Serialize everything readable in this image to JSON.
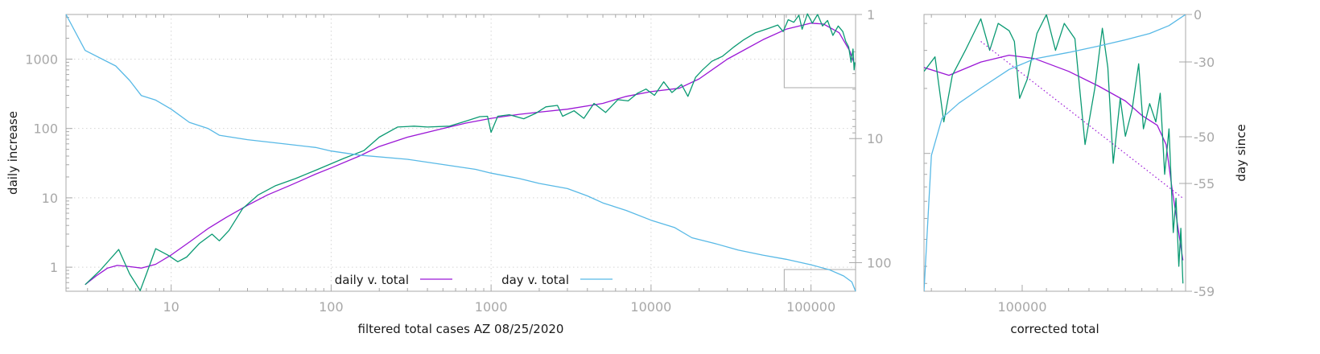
{
  "colors": {
    "fit": "#9b17d6",
    "raw": "#0b9a73",
    "day": "#58b9e6",
    "axis": "#a8a8a8"
  },
  "chart_data": [
    {
      "type": "line",
      "xlabel": "filtered total cases AZ 08/25/2020",
      "ylabel": "daily increase",
      "y2label": "",
      "xscale": "log",
      "yscale": "log",
      "y2scale": "log",
      "y2_reversed": true,
      "xlim": [
        2.2,
        190000
      ],
      "ylim": [
        0.45,
        4400
      ],
      "y2lim": [
        1,
        170
      ],
      "xticks": [
        10,
        100,
        1000,
        10000,
        100000
      ],
      "xtick_labels": [
        "10",
        "100",
        "1000",
        "10000",
        "100000"
      ],
      "yticks": [
        1,
        10,
        100,
        1000
      ],
      "ytick_labels": [
        "1",
        "10",
        "100",
        "1000"
      ],
      "y2ticks": [
        1,
        10,
        100
      ],
      "y2tick_labels": [
        "1",
        "10",
        "100"
      ],
      "grid": true,
      "legend_position": "bottom-center",
      "series": [
        {
          "name": "daily v. total",
          "color": "#9b17d6",
          "axis": "y",
          "points": [
            [
              2.9,
              0.56
            ],
            [
              3.4,
              0.75
            ],
            [
              4,
              0.97
            ],
            [
              4.6,
              1.06
            ],
            [
              5.5,
              1.02
            ],
            [
              6.5,
              0.97
            ],
            [
              8,
              1.1
            ],
            [
              10,
              1.5
            ],
            [
              13,
              2.3
            ],
            [
              17,
              3.6
            ],
            [
              22,
              5.2
            ],
            [
              30,
              7.8
            ],
            [
              40,
              11
            ],
            [
              55,
              15
            ],
            [
              80,
              22
            ],
            [
              100,
              27
            ],
            [
              150,
              40
            ],
            [
              200,
              55
            ],
            [
              300,
              75
            ],
            [
              500,
              100
            ],
            [
              700,
              120
            ],
            [
              1000,
              140
            ],
            [
              1500,
              160
            ],
            [
              2000,
              172
            ],
            [
              3000,
              190
            ],
            [
              5000,
              230
            ],
            [
              7000,
              290
            ],
            [
              10000,
              340
            ],
            [
              15000,
              380
            ],
            [
              20000,
              520
            ],
            [
              30000,
              1000
            ],
            [
              50000,
              1900
            ],
            [
              70000,
              2700
            ],
            [
              100000,
              3300
            ],
            [
              120000,
              3200
            ],
            [
              150000,
              2400
            ],
            [
              175000,
              1300
            ],
            [
              185000,
              900
            ]
          ]
        },
        {
          "name": "",
          "color": "#0b9a73",
          "axis": "y",
          "points": [
            [
              2.9,
              0.56
            ],
            [
              3.6,
              0.9
            ],
            [
              4.7,
              1.8
            ],
            [
              5.5,
              0.8
            ],
            [
              6.4,
              0.46
            ],
            [
              7,
              0.8
            ],
            [
              8,
              1.85
            ],
            [
              9.5,
              1.5
            ],
            [
              11,
              1.2
            ],
            [
              12.5,
              1.4
            ],
            [
              15,
              2.2
            ],
            [
              18,
              3
            ],
            [
              20,
              2.4
            ],
            [
              23,
              3.4
            ],
            [
              28,
              7
            ],
            [
              35,
              11
            ],
            [
              45,
              15
            ],
            [
              60,
              19
            ],
            [
              80,
              25
            ],
            [
              120,
              37
            ],
            [
              160,
              48
            ],
            [
              200,
              75
            ],
            [
              260,
              105
            ],
            [
              330,
              108
            ],
            [
              400,
              105
            ],
            [
              550,
              108
            ],
            [
              700,
              128
            ],
            [
              850,
              148
            ],
            [
              950,
              150
            ],
            [
              1000,
              88
            ],
            [
              1100,
              150
            ],
            [
              1300,
              158
            ],
            [
              1600,
              138
            ],
            [
              1900,
              165
            ],
            [
              2200,
              205
            ],
            [
              2600,
              215
            ],
            [
              2800,
              150
            ],
            [
              3300,
              180
            ],
            [
              3800,
              140
            ],
            [
              4400,
              230
            ],
            [
              5200,
              170
            ],
            [
              6200,
              260
            ],
            [
              7200,
              250
            ],
            [
              8200,
              320
            ],
            [
              9300,
              370
            ],
            [
              10500,
              300
            ],
            [
              12000,
              470
            ],
            [
              13500,
              330
            ],
            [
              15500,
              430
            ],
            [
              17000,
              290
            ],
            [
              19000,
              550
            ],
            [
              21000,
              700
            ],
            [
              24000,
              930
            ],
            [
              28000,
              1100
            ],
            [
              33000,
              1500
            ],
            [
              38000,
              1900
            ],
            [
              45000,
              2400
            ],
            [
              55000,
              2800
            ],
            [
              62000,
              3100
            ],
            [
              67000,
              2500
            ],
            [
              72000,
              3700
            ],
            [
              78000,
              3400
            ],
            [
              84000,
              4300
            ],
            [
              88000,
              2700
            ],
            [
              95000,
              4500
            ],
            [
              102000,
              3300
            ],
            [
              110000,
              4400
            ],
            [
              118000,
              3000
            ],
            [
              127000,
              3600
            ],
            [
              137000,
              2200
            ],
            [
              148000,
              3000
            ],
            [
              158000,
              2500
            ],
            [
              165000,
              1800
            ],
            [
              172000,
              1500
            ],
            [
              178000,
              900
            ],
            [
              183000,
              1400
            ],
            [
              186000,
              700
            ],
            [
              188000,
              900
            ]
          ]
        },
        {
          "name": "day v. total",
          "color": "#58b9e6",
          "axis": "y2",
          "points": [
            [
              2.2,
              1
            ],
            [
              2.9,
              1.95
            ],
            [
              4.5,
              2.6
            ],
            [
              5.5,
              3.4
            ],
            [
              6.5,
              4.5
            ],
            [
              8,
              4.9
            ],
            [
              10,
              5.8
            ],
            [
              13,
              7.4
            ],
            [
              17,
              8.3
            ],
            [
              20,
              9.4
            ],
            [
              30,
              10.2
            ],
            [
              50,
              11
            ],
            [
              80,
              11.8
            ],
            [
              100,
              12.6
            ],
            [
              150,
              13.6
            ],
            [
              300,
              14.7
            ],
            [
              500,
              16.2
            ],
            [
              800,
              17.7
            ],
            [
              1000,
              19
            ],
            [
              1500,
              21
            ],
            [
              2000,
              23
            ],
            [
              3000,
              25.3
            ],
            [
              4000,
              29
            ],
            [
              5000,
              33
            ],
            [
              7000,
              38
            ],
            [
              10000,
              45.5
            ],
            [
              14000,
              52
            ],
            [
              18000,
              63
            ],
            [
              25000,
              70
            ],
            [
              35000,
              79
            ],
            [
              50000,
              87
            ],
            [
              70000,
              94
            ],
            [
              100000,
              104
            ],
            [
              130000,
              114
            ],
            [
              160000,
              128
            ],
            [
              180000,
              143
            ],
            [
              190000,
              170
            ]
          ]
        }
      ],
      "legend": [
        {
          "label": "daily v. total",
          "color": "#9b17d6"
        },
        {
          "label": "day v. total",
          "color": "#58b9e6"
        }
      ]
    },
    {
      "type": "line",
      "xlabel": "corrected total",
      "ylabel": "",
      "y2label": "day since",
      "xscale": "log",
      "yscale": "log",
      "xlim": [
        68000,
        190000
      ],
      "ylim": [
        230,
        4400
      ],
      "y2lim": [
        -59,
        0
      ],
      "xticks": [
        100000
      ],
      "xtick_labels": [
        "100000"
      ],
      "y2ticks": [
        0,
        -30,
        -50,
        -55,
        -59
      ],
      "y2tick_labels": [
        "0",
        "-30",
        "-50",
        "-55",
        "-59"
      ],
      "series": [
        {
          "name": "",
          "color": "#9b17d6",
          "axis": "y",
          "points": [
            [
              68000,
              2500
            ],
            [
              75000,
              2300
            ],
            [
              85000,
              2650
            ],
            [
              95000,
              2850
            ],
            [
              105000,
              2750
            ],
            [
              120000,
              2400
            ],
            [
              135000,
              2050
            ],
            [
              150000,
              1750
            ],
            [
              160000,
              1500
            ],
            [
              170000,
              1350
            ],
            [
              176000,
              1100
            ],
            [
              180000,
              700
            ],
            [
              184000,
              470
            ],
            [
              188000,
              320
            ]
          ]
        },
        {
          "name": "",
          "color": "#0b9a73",
          "axis": "y",
          "points": [
            [
              68000,
              2400
            ],
            [
              71000,
              2800
            ],
            [
              73500,
              1400
            ],
            [
              76000,
              2300
            ],
            [
              80000,
              3000
            ],
            [
              85000,
              4200
            ],
            [
              88000,
              3000
            ],
            [
              91000,
              4000
            ],
            [
              95000,
              3700
            ],
            [
              97000,
              3300
            ],
            [
              99000,
              1800
            ],
            [
              102000,
              2200
            ],
            [
              106000,
              3600
            ],
            [
              110000,
              4400
            ],
            [
              114000,
              3000
            ],
            [
              118000,
              4000
            ],
            [
              123000,
              3400
            ],
            [
              128000,
              1100
            ],
            [
              133000,
              2000
            ],
            [
              137000,
              3800
            ],
            [
              140000,
              2500
            ],
            [
              143000,
              900
            ],
            [
              147000,
              1800
            ],
            [
              150000,
              1200
            ],
            [
              154000,
              1600
            ],
            [
              158000,
              2600
            ],
            [
              161000,
              1300
            ],
            [
              165000,
              1700
            ],
            [
              169000,
              1400
            ],
            [
              172000,
              1900
            ],
            [
              175000,
              800
            ],
            [
              178000,
              1300
            ],
            [
              181000,
              430
            ],
            [
              183000,
              620
            ],
            [
              185000,
              300
            ],
            [
              186500,
              450
            ],
            [
              188000,
              250
            ]
          ]
        },
        {
          "name": "",
          "color": "#58b9e6",
          "axis": "y2",
          "points": [
            [
              68000,
              -59
            ],
            [
              70000,
              -52
            ],
            [
              73000,
              -45
            ],
            [
              78000,
              -41
            ],
            [
              85000,
              -37
            ],
            [
              95000,
              -32
            ],
            [
              105000,
              -28
            ],
            [
              120000,
              -24
            ],
            [
              135000,
              -20
            ],
            [
              150000,
              -16
            ],
            [
              165000,
              -12
            ],
            [
              178000,
              -7
            ],
            [
              190000,
              0
            ]
          ]
        },
        {
          "name": "",
          "color": "#9b17d6",
          "axis": "y",
          "style": "dotted",
          "points": [
            [
              85000,
              3300
            ],
            [
              188000,
              620
            ]
          ]
        }
      ]
    }
  ]
}
